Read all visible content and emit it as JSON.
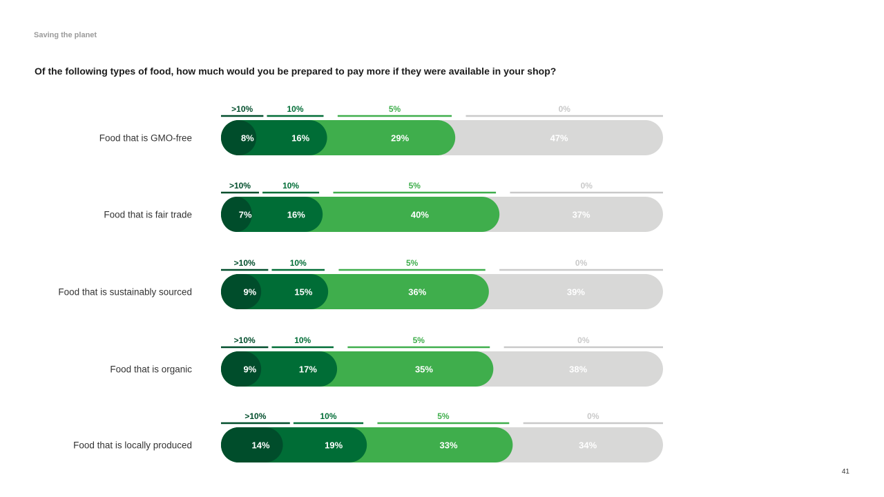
{
  "header": {
    "section": "Saving the planet",
    "page_number": "41"
  },
  "question": "Of the following types of food, how much would you be prepared to pay more if they were available in your shop?",
  "colors": {
    "more_than_10": "#004d2b",
    "ten": "#006d36",
    "five": "#3fae4c",
    "zero": "#d8d8d7",
    "zero_header": "#c9c9c9"
  },
  "chart_data": {
    "type": "bar",
    "stacked": true,
    "orientation": "horizontal",
    "value_format": "percent",
    "categories": [
      "Food that is GMO-free",
      "Food that is fair trade",
      "Food that is sustainably sourced",
      "Food that is organic",
      "Food that is locally produced"
    ],
    "series": [
      {
        "name": ">10%",
        "values": [
          8,
          7,
          9,
          9,
          14
        ]
      },
      {
        "name": "10%",
        "values": [
          16,
          16,
          15,
          17,
          19
        ]
      },
      {
        "name": "5%",
        "values": [
          29,
          40,
          36,
          35,
          33
        ]
      },
      {
        "name": "0%",
        "values": [
          47,
          37,
          39,
          38,
          34
        ]
      }
    ],
    "legend": "per-bar headers above segments"
  }
}
